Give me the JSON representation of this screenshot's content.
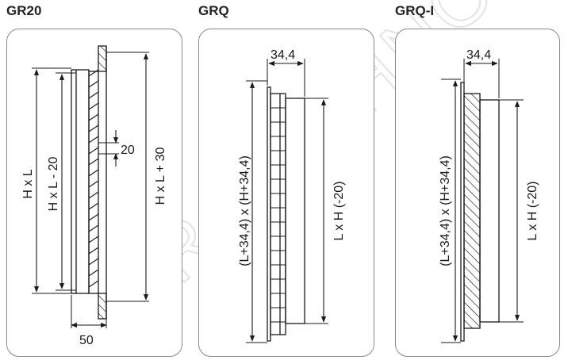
{
  "panels": [
    {
      "title": "GR20",
      "labels": {
        "outer_height": "H x L",
        "inner_height": "H x L - 20",
        "frame_height": "H x L + 30",
        "pitch": "20",
        "depth": "50"
      }
    },
    {
      "title": "GRQ",
      "labels": {
        "depth": "34,4",
        "outer_size": "(L+34,4) x (H+34,4)",
        "inner_size": "L x H (-20)"
      }
    },
    {
      "title": "GRQ-I",
      "labels": {
        "depth": "34,4",
        "outer_size": "(L+34,4) x (H+34,4)",
        "inner_size": "L x H (-20)"
      }
    }
  ],
  "watermark_text": "AIR TECHNOLOGY",
  "colors": {
    "line": "#1a1a1a",
    "border": "#8a8a8a",
    "watermark": "#e6e6e6"
  }
}
